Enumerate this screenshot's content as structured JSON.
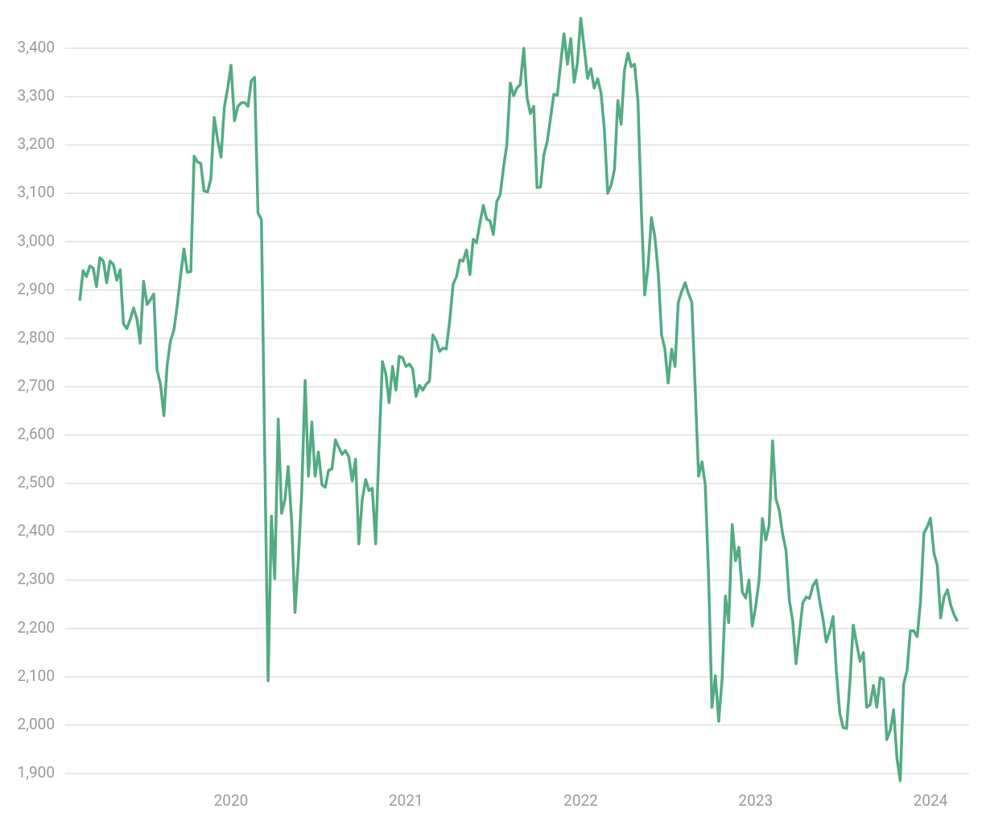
{
  "chart_data": {
    "type": "line",
    "color": "#52ab83",
    "grid": true,
    "xlim": [
      2019.05,
      2024.23
    ],
    "ylim": [
      1850,
      3480
    ],
    "xticks": [
      2020,
      2021,
      2022,
      2023,
      2024
    ],
    "yticks": [
      {
        "value": 1900,
        "label": "1,900"
      },
      {
        "value": 2000,
        "label": "2,000"
      },
      {
        "value": 2100,
        "label": "2,100"
      },
      {
        "value": 2200,
        "label": "2,200"
      },
      {
        "value": 2300,
        "label": "2,300"
      },
      {
        "value": 2400,
        "label": "2,400"
      },
      {
        "value": 2500,
        "label": "2,500"
      },
      {
        "value": 2600,
        "label": "2,600"
      },
      {
        "value": 2700,
        "label": "2,700"
      },
      {
        "value": 2800,
        "label": "2,800"
      },
      {
        "value": 2900,
        "label": "2,900"
      },
      {
        "value": 3000,
        "label": "3,000"
      },
      {
        "value": 3100,
        "label": "3,100"
      },
      {
        "value": 3200,
        "label": "3,200"
      },
      {
        "value": 3300,
        "label": "3,300"
      },
      {
        "value": 3400,
        "label": "3,400"
      }
    ],
    "x": [
      2019.135,
      2019.154,
      2019.174,
      2019.193,
      2019.212,
      2019.231,
      2019.25,
      2019.27,
      2019.289,
      2019.308,
      2019.327,
      2019.347,
      2019.366,
      2019.385,
      2019.404,
      2019.424,
      2019.443,
      2019.462,
      2019.481,
      2019.5,
      2019.52,
      2019.539,
      2019.558,
      2019.577,
      2019.597,
      2019.616,
      2019.635,
      2019.654,
      2019.674,
      2019.693,
      2019.712,
      2019.731,
      2019.75,
      2019.77,
      2019.789,
      2019.808,
      2019.827,
      2019.846,
      2019.866,
      2019.885,
      2019.904,
      2019.924,
      2019.943,
      2019.962,
      2019.981,
      2020.0,
      2020.02,
      2020.039,
      2020.058,
      2020.077,
      2020.097,
      2020.116,
      2020.135,
      2020.154,
      2020.174,
      2020.193,
      2020.212,
      2020.231,
      2020.25,
      2020.27,
      2020.289,
      2020.308,
      2020.327,
      2020.347,
      2020.366,
      2020.385,
      2020.404,
      2020.424,
      2020.443,
      2020.462,
      2020.481,
      2020.5,
      2020.52,
      2020.539,
      2020.558,
      2020.577,
      2020.597,
      2020.616,
      2020.635,
      2020.654,
      2020.674,
      2020.693,
      2020.712,
      2020.731,
      2020.75,
      2020.77,
      2020.789,
      2020.808,
      2020.827,
      2020.846,
      2020.866,
      2020.885,
      2020.904,
      2020.924,
      2020.943,
      2020.962,
      2020.981,
      2021.0,
      2021.02,
      2021.039,
      2021.058,
      2021.077,
      2021.097,
      2021.116,
      2021.135,
      2021.154,
      2021.174,
      2021.193,
      2021.212,
      2021.231,
      2021.25,
      2021.27,
      2021.289,
      2021.308,
      2021.327,
      2021.347,
      2021.366,
      2021.385,
      2021.404,
      2021.424,
      2021.443,
      2021.462,
      2021.481,
      2021.5,
      2021.52,
      2021.539,
      2021.558,
      2021.577,
      2021.597,
      2021.616,
      2021.635,
      2021.654,
      2021.674,
      2021.693,
      2021.712,
      2021.731,
      2021.75,
      2021.77,
      2021.789,
      2021.808,
      2021.827,
      2021.846,
      2021.866,
      2021.885,
      2021.904,
      2021.924,
      2021.943,
      2021.962,
      2021.981,
      2022.0,
      2022.02,
      2022.039,
      2022.058,
      2022.077,
      2022.097,
      2022.116,
      2022.135,
      2022.154,
      2022.174,
      2022.193,
      2022.212,
      2022.231,
      2022.25,
      2022.27,
      2022.289,
      2022.308,
      2022.327,
      2022.347,
      2022.366,
      2022.385,
      2022.404,
      2022.424,
      2022.443,
      2022.462,
      2022.481,
      2022.5,
      2022.52,
      2022.539,
      2022.558,
      2022.577,
      2022.597,
      2022.616,
      2022.635,
      2022.654,
      2022.674,
      2022.693,
      2022.712,
      2022.731,
      2022.75,
      2022.77,
      2022.789,
      2022.808,
      2022.827,
      2022.846,
      2022.866,
      2022.885,
      2022.904,
      2022.924,
      2022.943,
      2022.962,
      2022.981,
      2023.0,
      2023.02,
      2023.039,
      2023.058,
      2023.077,
      2023.097,
      2023.116,
      2023.135,
      2023.154,
      2023.174,
      2023.193,
      2023.212,
      2023.231,
      2023.25,
      2023.27,
      2023.289,
      2023.308,
      2023.327,
      2023.347,
      2023.366,
      2023.385,
      2023.404,
      2023.424,
      2023.443,
      2023.462,
      2023.481,
      2023.5,
      2023.52,
      2023.539,
      2023.558,
      2023.577,
      2023.597,
      2023.616,
      2023.635,
      2023.654,
      2023.674,
      2023.693,
      2023.712,
      2023.731,
      2023.75,
      2023.77,
      2023.789,
      2023.808,
      2023.827,
      2023.846,
      2023.866,
      2023.885,
      2023.904,
      2023.924,
      2023.943,
      2023.962,
      2023.981,
      2024.0,
      2024.02,
      2024.039,
      2024.058,
      2024.077,
      2024.097,
      2024.116,
      2024.135,
      2024.154
    ],
    "values": [
      2878,
      2940,
      2928,
      2950,
      2945,
      2907,
      2967,
      2960,
      2915,
      2960,
      2953,
      2920,
      2942,
      2830,
      2820,
      2840,
      2863,
      2840,
      2790,
      2918,
      2870,
      2880,
      2892,
      2735,
      2705,
      2640,
      2745,
      2795,
      2818,
      2870,
      2930,
      2985,
      2937,
      2938,
      3177,
      3165,
      3162,
      3105,
      3103,
      3130,
      3257,
      3210,
      3175,
      3278,
      3318,
      3365,
      3250,
      3280,
      3287,
      3288,
      3280,
      3333,
      3340,
      3060,
      3045,
      2560,
      2092,
      2432,
      2303,
      2633,
      2438,
      2465,
      2535,
      2420,
      2233,
      2340,
      2480,
      2713,
      2515,
      2627,
      2515,
      2565,
      2497,
      2492,
      2527,
      2530,
      2590,
      2575,
      2560,
      2568,
      2555,
      2505,
      2550,
      2375,
      2465,
      2508,
      2485,
      2490,
      2375,
      2570,
      2752,
      2727,
      2667,
      2742,
      2693,
      2763,
      2760,
      2742,
      2747,
      2737,
      2680,
      2703,
      2693,
      2705,
      2712,
      2807,
      2795,
      2773,
      2780,
      2778,
      2835,
      2912,
      2927,
      2962,
      2960,
      2983,
      2932,
      3005,
      2998,
      3040,
      3075,
      3047,
      3043,
      3015,
      3083,
      3097,
      3153,
      3200,
      3328,
      3302,
      3318,
      3325,
      3400,
      3298,
      3265,
      3280,
      3112,
      3113,
      3180,
      3207,
      3255,
      3305,
      3303,
      3368,
      3430,
      3367,
      3420,
      3330,
      3370,
      3462,
      3400,
      3338,
      3358,
      3318,
      3337,
      3308,
      3233,
      3100,
      3117,
      3150,
      3292,
      3243,
      3355,
      3390,
      3362,
      3367,
      3290,
      3060,
      2890,
      2950,
      3050,
      3010,
      2935,
      2808,
      2778,
      2708,
      2778,
      2742,
      2875,
      2897,
      2915,
      2893,
      2875,
      2700,
      2515,
      2545,
      2497,
      2310,
      2037,
      2102,
      2008,
      2095,
      2267,
      2212,
      2415,
      2340,
      2368,
      2275,
      2263,
      2300,
      2205,
      2245,
      2300,
      2427,
      2383,
      2413,
      2588,
      2468,
      2445,
      2397,
      2360,
      2258,
      2215,
      2127,
      2190,
      2253,
      2265,
      2262,
      2288,
      2300,
      2257,
      2220,
      2172,
      2195,
      2225,
      2110,
      2025,
      1995,
      1993,
      2090,
      2207,
      2170,
      2132,
      2150,
      2037,
      2042,
      2082,
      2037,
      2098,
      2095,
      1970,
      1990,
      2032,
      1932,
      1885,
      2085,
      2113,
      2195,
      2195,
      2183,
      2255,
      2397,
      2410,
      2428,
      2355,
      2330,
      2222,
      2265,
      2280,
      2248,
      2228,
      2215
    ]
  }
}
